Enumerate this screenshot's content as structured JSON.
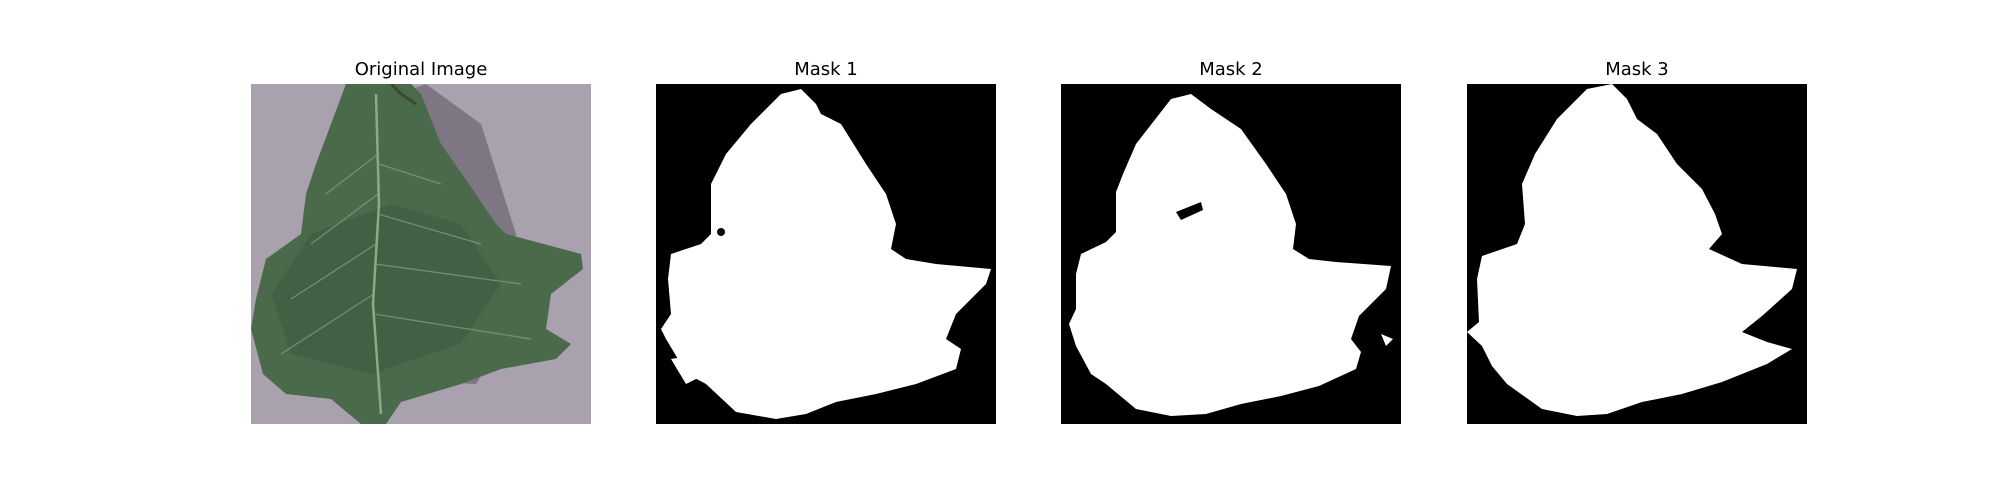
{
  "figure": {
    "panels": [
      {
        "id": "original",
        "title": "Original Image",
        "content": "leaf-photo"
      },
      {
        "id": "mask1",
        "title": "Mask 1",
        "content": "binary-mask"
      },
      {
        "id": "mask2",
        "title": "Mask 2",
        "content": "binary-mask"
      },
      {
        "id": "mask3",
        "title": "Mask 3",
        "content": "binary-mask"
      }
    ],
    "colors": {
      "background": "#ffffff",
      "mask_bg": "#000000",
      "mask_fg": "#ffffff",
      "photo_bg": "#a9a1ad",
      "leaf": "#4b6a4c",
      "leaf_dark": "#2f4330",
      "vein": "#8da98a"
    }
  }
}
